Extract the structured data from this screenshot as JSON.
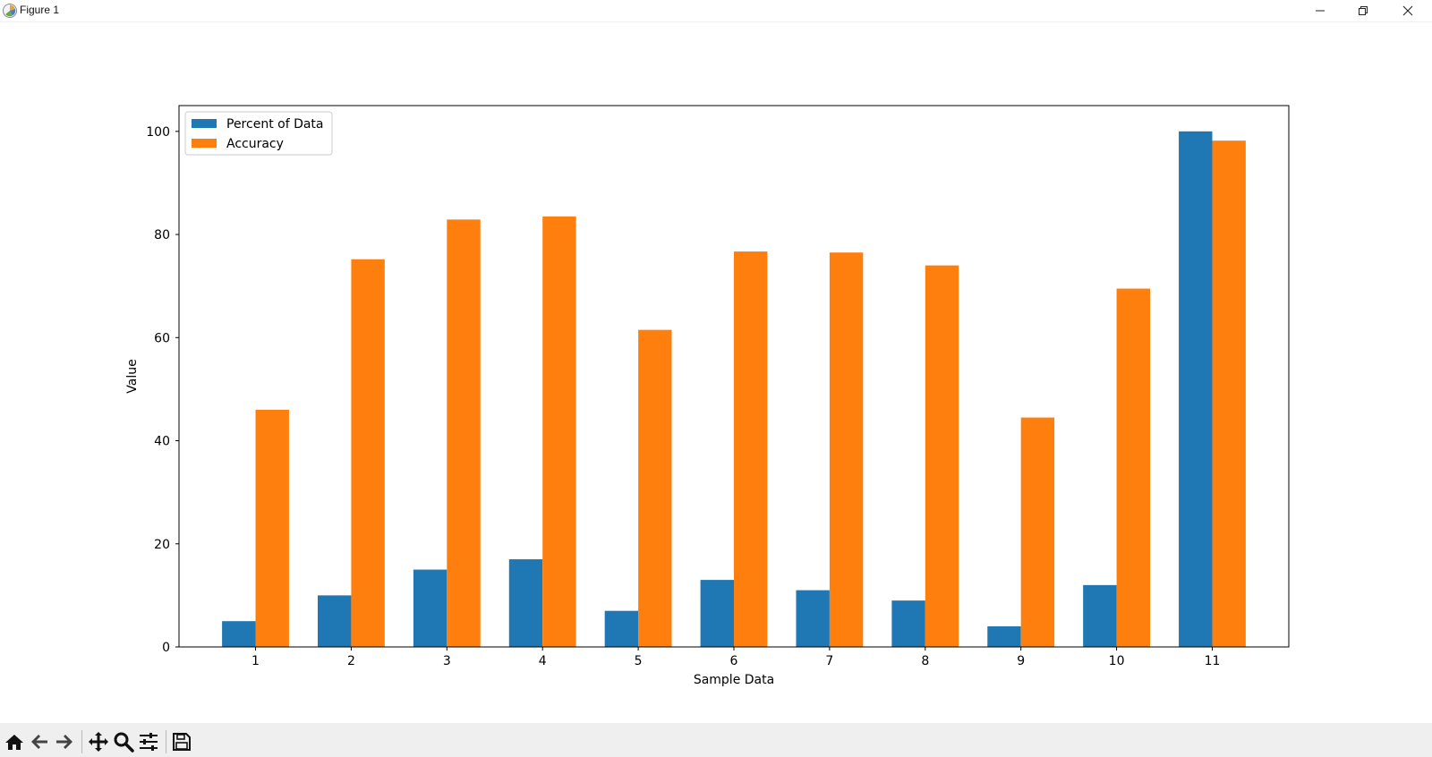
{
  "window": {
    "title": "Figure 1",
    "controls": [
      "minimize-icon",
      "restore-icon",
      "close-icon"
    ]
  },
  "toolbar": {
    "buttons": [
      "home-icon",
      "back-arrow-icon",
      "forward-arrow-icon",
      "pan-icon",
      "zoom-icon",
      "configure-subplots-icon",
      "save-icon"
    ]
  },
  "chart_data": {
    "type": "bar",
    "title": "",
    "xlabel": "Sample Data",
    "ylabel": "Value",
    "categories": [
      "1",
      "2",
      "3",
      "4",
      "5",
      "6",
      "7",
      "8",
      "9",
      "10",
      "11"
    ],
    "series": [
      {
        "name": "Percent of Data",
        "color": "#1f77b4",
        "values": [
          5,
          10,
          15,
          17,
          7,
          13,
          11,
          9,
          4,
          12,
          100
        ]
      },
      {
        "name": "Accuracy",
        "color": "#ff7f0e",
        "values": [
          46,
          75.2,
          82.9,
          83.5,
          61.5,
          76.7,
          76.5,
          74,
          44.5,
          69.5,
          98.2
        ]
      }
    ],
    "ylim": [
      0,
      105
    ],
    "yticks": [
      "0",
      "20",
      "40",
      "60",
      "80",
      "100"
    ],
    "grid": false,
    "legend_position": "upper left"
  }
}
